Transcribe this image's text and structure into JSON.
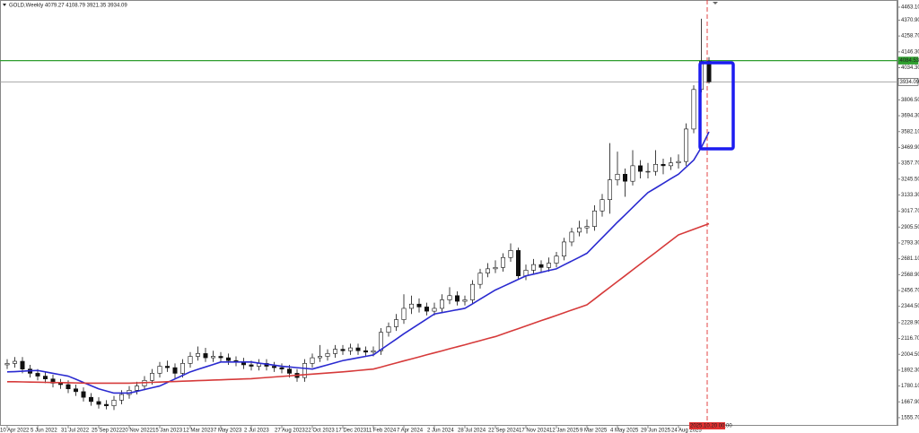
{
  "chart_data": {
    "type": "candlestick",
    "title": "GOLD,Weekly  4079.27 4108.79 3921.35 3934.09",
    "categories": [
      "10 Apr 2022",
      null,
      null,
      null,
      "5 Jun 2022",
      null,
      null,
      null,
      "31 Jul 2022",
      null,
      null,
      null,
      "25 Sep 2022",
      null,
      null,
      null,
      "20 Nov 2022",
      null,
      null,
      null,
      "15 Jan 2023",
      null,
      null,
      null,
      "12 Mar 2023",
      null,
      null,
      null,
      "7 May 2023",
      null,
      null,
      null,
      "2 Jul 2023",
      null,
      null,
      null,
      "27 Aug 2023",
      null,
      null,
      null,
      "22 Oct 2023",
      null,
      null,
      null,
      "17 Dec 2023",
      null,
      null,
      null,
      "11 Feb 2024",
      null,
      null,
      null,
      "7 Apr 2024",
      null,
      null,
      null,
      "2 Jun 2024",
      null,
      null,
      null,
      "28 Jul 2024",
      null,
      null,
      null,
      "22 Sep 2024",
      null,
      null,
      null,
      "17 Nov 2024",
      null,
      null,
      null,
      "12 Jan 2025",
      null,
      null,
      null,
      "9 Mar 2025",
      null,
      null,
      null,
      "4 May 2025",
      null,
      null,
      null,
      "29 Jun 2025",
      null,
      null,
      null,
      "24 Aug 2025",
      null,
      null,
      null,
      null
    ],
    "open": [
      1930,
      1940,
      1955,
      1900,
      1870,
      1850,
      1830,
      1800,
      1790,
      1760,
      1740,
      1700,
      1670,
      1650,
      1640,
      1680,
      1720,
      1750,
      1780,
      1820,
      1870,
      1920,
      1910,
      1870,
      1940,
      1990,
      2010,
      1980,
      1990,
      1980,
      1960,
      1950,
      1930,
      1920,
      1940,
      1920,
      1910,
      1900,
      1870,
      1840,
      1940,
      1980,
      1990,
      2010,
      2040,
      2030,
      2050,
      2030,
      2020,
      2030,
      2160,
      2200,
      2250,
      2330,
      2360,
      2340,
      2310,
      2330,
      2390,
      2420,
      2380,
      2390,
      2500,
      2580,
      2610,
      2620,
      2690,
      2740,
      2560,
      2600,
      2640,
      2620,
      2650,
      2700,
      2800,
      2870,
      2900,
      2910,
      3020,
      3100,
      3240,
      3280,
      3230,
      3340,
      3300,
      3300,
      3350,
      3340,
      3360,
      3370,
      3600,
      3880,
      4079.27
    ],
    "high": [
      1970,
      1985,
      1985,
      1930,
      1900,
      1880,
      1860,
      1830,
      1820,
      1790,
      1770,
      1730,
      1700,
      1680,
      1710,
      1750,
      1780,
      1810,
      1850,
      1900,
      1950,
      1960,
      1940,
      1970,
      2020,
      2060,
      2050,
      2030,
      2020,
      2010,
      1990,
      1980,
      1960,
      1970,
      1970,
      1950,
      1940,
      1930,
      1900,
      1970,
      2010,
      2070,
      2040,
      2070,
      2070,
      2080,
      2080,
      2060,
      2060,
      2190,
      2230,
      2290,
      2430,
      2420,
      2400,
      2370,
      2370,
      2430,
      2480,
      2450,
      2420,
      2530,
      2610,
      2650,
      2670,
      2720,
      2790,
      2760,
      2640,
      2680,
      2670,
      2690,
      2730,
      2830,
      2900,
      2950,
      2960,
      3060,
      3140,
      3500,
      3440,
      3320,
      3450,
      3380,
      3360,
      3450,
      3390,
      3400,
      3420,
      3640,
      3910,
      4381,
      4108.79
    ],
    "low": [
      1900,
      1910,
      1870,
      1840,
      1820,
      1800,
      1770,
      1760,
      1730,
      1710,
      1670,
      1640,
      1620,
      1615,
      1610,
      1650,
      1690,
      1720,
      1750,
      1790,
      1840,
      1880,
      1830,
      1840,
      1910,
      1960,
      1950,
      1950,
      1950,
      1930,
      1920,
      1900,
      1890,
      1890,
      1890,
      1880,
      1870,
      1840,
      1810,
      1810,
      1910,
      1950,
      1960,
      1980,
      2000,
      2000,
      2000,
      1990,
      1990,
      2000,
      2130,
      2170,
      2220,
      2290,
      2300,
      2280,
      2280,
      2300,
      2360,
      2350,
      2350,
      2360,
      2470,
      2550,
      2580,
      2590,
      2660,
      2540,
      2530,
      2570,
      2590,
      2590,
      2620,
      2670,
      2770,
      2840,
      2860,
      2880,
      2980,
      3000,
      3200,
      3120,
      3200,
      3250,
      3250,
      3270,
      3280,
      3310,
      3320,
      3340,
      3570,
      3860,
      3921.35
    ],
    "close": [
      1940,
      1955,
      1900,
      1870,
      1850,
      1830,
      1800,
      1790,
      1760,
      1740,
      1700,
      1670,
      1650,
      1640,
      1680,
      1720,
      1750,
      1780,
      1820,
      1870,
      1920,
      1910,
      1870,
      1940,
      1990,
      2010,
      1980,
      1990,
      1980,
      1960,
      1950,
      1930,
      1920,
      1940,
      1920,
      1910,
      1900,
      1870,
      1840,
      1940,
      1980,
      1990,
      2010,
      2040,
      2030,
      2050,
      2030,
      2020,
      2030,
      2160,
      2200,
      2250,
      2330,
      2360,
      2340,
      2310,
      2330,
      2390,
      2420,
      2380,
      2390,
      2500,
      2580,
      2610,
      2620,
      2690,
      2740,
      2560,
      2600,
      2640,
      2620,
      2650,
      2700,
      2800,
      2870,
      2900,
      2910,
      3020,
      3100,
      3240,
      3280,
      3230,
      3340,
      3300,
      3300,
      3350,
      3340,
      3360,
      3370,
      3600,
      3880,
      4079.27,
      3934.09
    ],
    "series": [
      {
        "color": "#2a2ad0",
        "values": [
          1880,
          1882,
          1885,
          1888,
          1890,
          1880,
          1870,
          1860,
          1850,
          1828,
          1805,
          1782,
          1760,
          1745,
          1730,
          1730,
          1730,
          1742,
          1755,
          1768,
          1780,
          1805,
          1830,
          1855,
          1880,
          1898,
          1915,
          1932,
          1950,
          1950,
          1950,
          1950,
          1950,
          1942,
          1935,
          1928,
          1920,
          1915,
          1910,
          1905,
          1900,
          1915,
          1930,
          1945,
          1960,
          1970,
          1980,
          1990,
          2000,
          2038,
          2075,
          2112,
          2150,
          2185,
          2220,
          2255,
          2290,
          2300,
          2310,
          2320,
          2330,
          2362,
          2395,
          2428,
          2460,
          2485,
          2510,
          2535,
          2560,
          2572,
          2585,
          2598,
          2610,
          2638,
          2665,
          2692,
          2720,
          2775,
          2830,
          2885,
          2940,
          2992,
          3045,
          3098,
          3150,
          3182,
          3215,
          3248,
          3280,
          3330,
          3380,
          3470,
          3580
        ]
      },
      {
        "color": "#d63a3a",
        "values": [
          1810,
          1810,
          1809,
          1808,
          1807,
          1806,
          1805,
          1804,
          1803,
          1802,
          1801,
          1800,
          1800,
          1800,
          1800,
          1800,
          1800,
          1802,
          1804,
          1806,
          1808,
          1810,
          1812,
          1814,
          1816,
          1818,
          1820,
          1822,
          1824,
          1826,
          1828,
          1830,
          1832,
          1836,
          1840,
          1844,
          1848,
          1852,
          1856,
          1860,
          1864,
          1868,
          1872,
          1876,
          1880,
          1885,
          1890,
          1895,
          1900,
          1914,
          1929,
          1943,
          1958,
          1972,
          1986,
          2001,
          2015,
          2029,
          2044,
          2058,
          2072,
          2087,
          2101,
          2116,
          2130,
          2149,
          2168,
          2186,
          2205,
          2224,
          2243,
          2261,
          2280,
          2299,
          2318,
          2336,
          2355,
          2396,
          2438,
          2479,
          2520,
          2561,
          2603,
          2644,
          2685,
          2726,
          2768,
          2809,
          2850,
          2870,
          2890,
          2910,
          2930
        ]
      }
    ],
    "levels": [
      {
        "value": 4084.53,
        "color": "#2e9e2e"
      },
      {
        "value": 3934.09,
        "color": "#9a9a9a"
      }
    ],
    "cursor_label": "2025.10.20 00:00",
    "ylim": [
      1498,
      4501
    ],
    "yticks": [
      {
        "value": 4463.1,
        "label": "4463.10"
      },
      {
        "value": 4370.9,
        "label": "4370.90"
      },
      {
        "value": 4258.7,
        "label": "4258.70"
      },
      {
        "value": 4146.3,
        "label": "4146.30"
      },
      {
        "value": 4034.3,
        "label": "4034.30"
      },
      {
        "value": 3806.5,
        "label": "3806.50"
      },
      {
        "value": 3694.3,
        "label": "3694.30"
      },
      {
        "value": 3582.1,
        "label": "3582.10"
      },
      {
        "value": 3469.9,
        "label": "3469.90"
      },
      {
        "value": 3357.7,
        "label": "3357.70"
      },
      {
        "value": 3245.5,
        "label": "3245.50"
      },
      {
        "value": 3133.3,
        "label": "3133.30"
      },
      {
        "value": 3017.7,
        "label": "3017.70"
      },
      {
        "value": 2905.5,
        "label": "2905.50"
      },
      {
        "value": 2793.3,
        "label": "2793.30"
      },
      {
        "value": 2681.1,
        "label": "2681.10"
      },
      {
        "value": 2568.9,
        "label": "2568.90"
      },
      {
        "value": 2456.7,
        "label": "2456.70"
      },
      {
        "value": 2344.5,
        "label": "2344.50"
      },
      {
        "value": 2228.9,
        "label": "2228.90"
      },
      {
        "value": 2116.7,
        "label": "2116.70"
      },
      {
        "value": 2004.5,
        "label": "2004.50"
      },
      {
        "value": 1892.3,
        "label": "1892.30"
      },
      {
        "value": 1780.1,
        "label": "1780.10"
      },
      {
        "value": 1667.9,
        "label": "1667.90"
      },
      {
        "value": 1555.7,
        "label": "1555.70"
      }
    ],
    "grid": false
  }
}
